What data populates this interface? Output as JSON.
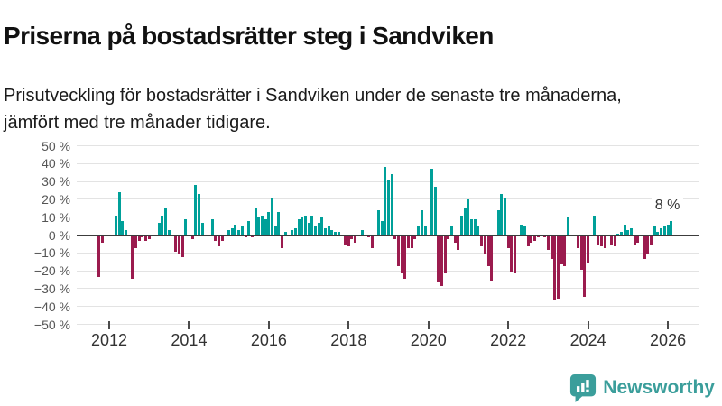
{
  "header": {
    "title": "Priserna på bostadsrätter steg i Sandviken",
    "subtitle": "Prisutveckling för bostadsrätter i Sandviken under de senaste tre månaderna, jämfört med tre månader tidigare."
  },
  "chart_data": {
    "type": "bar",
    "title": "Priserna på bostadsrätter steg i Sandviken",
    "unit": "%",
    "frequency": "monthly",
    "start_month": "2011-10",
    "end_month": "2026-02",
    "ylim": [
      -50,
      50
    ],
    "grid": true,
    "y_ticks": [
      50,
      40,
      30,
      20,
      10,
      0,
      -10,
      -20,
      -30,
      -40,
      -50
    ],
    "y_tick_suffix": " %",
    "x_ticks": [
      2012,
      2014,
      2016,
      2018,
      2020,
      2022,
      2024,
      2026
    ],
    "annotation": {
      "text": "8 %",
      "value": 8
    },
    "colors": {
      "positive": "#00A099",
      "negative": "#9B1B4E"
    },
    "series": [
      {
        "name": "Prisutveckling",
        "values": [
          -23,
          -4,
          0,
          0,
          0,
          11,
          24,
          8,
          3,
          0,
          -24,
          -7,
          -3,
          -1,
          -3,
          -2,
          0,
          0,
          7,
          11,
          15,
          3,
          0,
          -9,
          -10,
          -12,
          9,
          0,
          -2,
          28,
          23,
          7,
          0,
          0,
          9,
          -3,
          -6,
          -3,
          0,
          3,
          4,
          6,
          3,
          5,
          -1,
          8,
          -1,
          15,
          10,
          11,
          9,
          13,
          21,
          5,
          13,
          -7,
          2,
          0,
          3,
          4,
          9,
          10,
          11,
          7,
          11,
          5,
          7,
          10,
          4,
          5,
          3,
          2,
          2,
          0,
          -5,
          -6,
          -2,
          -4,
          0,
          3,
          0,
          -1,
          -7,
          0,
          14,
          8,
          38,
          31,
          34,
          -2,
          -17,
          -21,
          -24,
          -7,
          -7,
          -2,
          5,
          14,
          5,
          0,
          37,
          27,
          -26,
          -28,
          -21,
          -2,
          5,
          -4,
          -8,
          11,
          15,
          20,
          9,
          9,
          5,
          -6,
          -10,
          -17,
          -25,
          0,
          14,
          23,
          21,
          -7,
          -20,
          -21,
          0,
          6,
          5,
          -6,
          -4,
          -3,
          -1,
          0,
          -1,
          -8,
          -13,
          -36,
          -35,
          -16,
          -17,
          10,
          0,
          0,
          -7,
          -19,
          -34,
          -15,
          0,
          11,
          -5,
          -6,
          -7,
          0,
          -5,
          -6,
          1,
          2,
          6,
          3,
          4,
          -5,
          -4,
          0,
          -13,
          -10,
          -5,
          5,
          2,
          4,
          5,
          6,
          8
        ]
      }
    ]
  },
  "footer": {
    "brand": "Newsworthy",
    "brand_color": "#3B9E9B"
  }
}
